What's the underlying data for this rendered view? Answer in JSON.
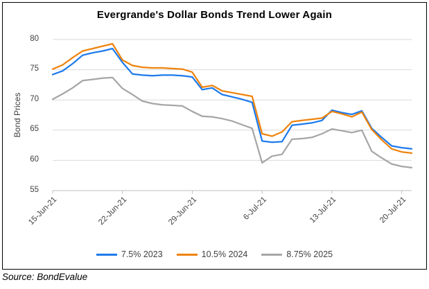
{
  "source_note": "Source: BondEvalue",
  "colors": {
    "bond_2023": "#1d7aeb",
    "bond_2024": "#ee830d",
    "bond_2025": "#a6a6a6",
    "gridline": "#d9d9d9",
    "axis": "#bfbfbf",
    "tick_text": "#404040",
    "title_text": "#000000"
  },
  "chart_data": {
    "type": "line",
    "title": "Evergrande's Dollar Bonds Trend Lower Again",
    "xlabel": "",
    "ylabel": "Bond Prices",
    "ylim": [
      55,
      80
    ],
    "ytick_step": 5,
    "grid": "horizontal-only",
    "legend_position": "bottom",
    "x": [
      "15-Jun-21",
      "16-Jun-21",
      "17-Jun-21",
      "18-Jun-21",
      "19-Jun-21",
      "20-Jun-21",
      "21-Jun-21",
      "22-Jun-21",
      "23-Jun-21",
      "24-Jun-21",
      "25-Jun-21",
      "26-Jun-21",
      "27-Jun-21",
      "28-Jun-21",
      "29-Jun-21",
      "30-Jun-21",
      "1-Jul-21",
      "2-Jul-21",
      "3-Jul-21",
      "4-Jul-21",
      "5-Jul-21",
      "6-Jul-21",
      "7-Jul-21",
      "8-Jul-21",
      "9-Jul-21",
      "10-Jul-21",
      "11-Jul-21",
      "12-Jul-21",
      "13-Jul-21",
      "14-Jul-21",
      "15-Jul-21",
      "16-Jul-21",
      "17-Jul-21",
      "18-Jul-21",
      "19-Jul-21",
      "20-Jul-21",
      "21-Jul-21"
    ],
    "xtick_labels": [
      "15-Jun-21",
      "22-Jun-21",
      "29-Jun-21",
      "6-Jul-21",
      "13-Jul-21",
      "20-Jul-21"
    ],
    "xtick_indices": [
      0,
      7,
      14,
      21,
      28,
      35
    ],
    "series": [
      {
        "name": "7.5% 2023",
        "color": "#1d7aeb",
        "values": [
          74.2,
          74.8,
          76.0,
          77.4,
          77.8,
          78.1,
          78.5,
          76.2,
          74.3,
          74.1,
          74.0,
          74.1,
          74.1,
          74.0,
          73.8,
          71.7,
          72.0,
          70.9,
          70.5,
          70.1,
          69.6,
          63.2,
          63.0,
          63.1,
          65.8,
          66.0,
          66.2,
          66.6,
          68.3,
          67.9,
          67.6,
          68.2,
          65.3,
          63.8,
          62.4,
          62.1,
          61.9
        ]
      },
      {
        "name": "10.5% 2024",
        "color": "#ee830d",
        "values": [
          75.1,
          75.8,
          77.0,
          78.1,
          78.5,
          78.9,
          79.3,
          76.6,
          75.7,
          75.4,
          75.3,
          75.3,
          75.2,
          75.1,
          74.6,
          72.1,
          72.4,
          71.5,
          71.2,
          70.9,
          70.6,
          64.4,
          64.0,
          64.7,
          66.4,
          66.6,
          66.8,
          67.0,
          68.1,
          67.7,
          67.2,
          68.0,
          65.1,
          63.4,
          61.9,
          61.4,
          61.2
        ]
      },
      {
        "name": "8.75% 2025",
        "color": "#a6a6a6",
        "values": [
          70.1,
          71.0,
          72.0,
          73.2,
          73.4,
          73.6,
          73.7,
          71.9,
          70.9,
          69.8,
          69.4,
          69.2,
          69.1,
          69.0,
          68.1,
          67.3,
          67.2,
          66.9,
          66.5,
          65.9,
          65.3,
          59.6,
          60.7,
          61.0,
          63.5,
          63.6,
          63.8,
          64.4,
          65.2,
          64.9,
          64.6,
          65.0,
          61.5,
          60.4,
          59.4,
          59.0,
          58.8
        ]
      }
    ]
  }
}
